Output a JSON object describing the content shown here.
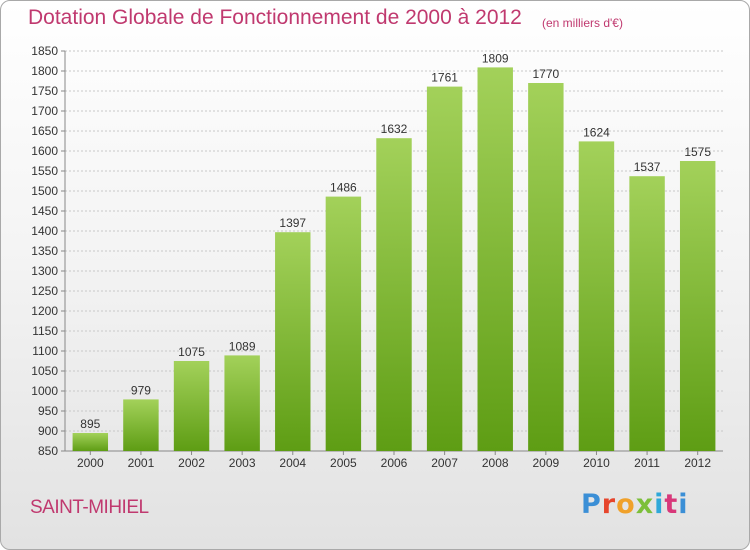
{
  "header": {
    "title": "Dotation Globale de Fonctionnement de 2000 à 2012",
    "unit": "(en milliers d'€)"
  },
  "footer": {
    "commune": "SAINT-MIHIEL",
    "logo": "Proxiti"
  },
  "colors": {
    "accent": "#c0396f",
    "bar_light": "#a3d15a",
    "bar_dark": "#5e9d14",
    "grid": "#c8c8c8"
  },
  "chart_data": {
    "type": "bar",
    "title": "Dotation Globale de Fonctionnement de 2000 à 2012",
    "subtitle": "(en milliers d'€)",
    "categories": [
      "2000",
      "2001",
      "2002",
      "2003",
      "2004",
      "2005",
      "2006",
      "2007",
      "2008",
      "2009",
      "2010",
      "2011",
      "2012"
    ],
    "values": [
      895,
      979,
      1075,
      1089,
      1397,
      1486,
      1632,
      1761,
      1809,
      1770,
      1624,
      1537,
      1575
    ],
    "ylim": [
      850,
      1850
    ],
    "yticks": [
      850,
      900,
      950,
      1000,
      1050,
      1100,
      1150,
      1200,
      1250,
      1300,
      1350,
      1400,
      1450,
      1500,
      1550,
      1600,
      1650,
      1700,
      1750,
      1800,
      1850
    ],
    "grid": true,
    "data_labels": true,
    "legend": "none"
  }
}
